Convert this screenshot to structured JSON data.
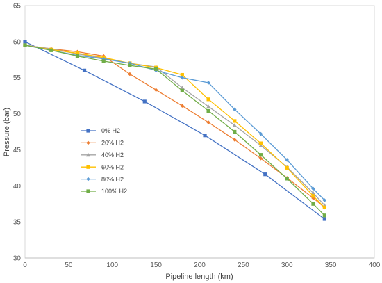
{
  "chart_data": {
    "type": "line",
    "xlabel": "Pipeline length (km)",
    "ylabel": "Pressure (bar)",
    "xlim": [
      0,
      400
    ],
    "ylim": [
      30,
      65
    ],
    "xticks": [
      0,
      50,
      100,
      150,
      200,
      250,
      300,
      350,
      400
    ],
    "yticks": [
      30,
      35,
      40,
      45,
      50,
      55,
      60,
      65
    ],
    "grid": false,
    "legend": "center-left",
    "series": [
      {
        "name": "0% H2",
        "color": "#4472C4",
        "marker": "square",
        "points": [
          [
            0,
            60.0
          ],
          [
            68,
            56.0
          ],
          [
            137,
            51.7
          ],
          [
            206,
            47.0
          ],
          [
            275,
            41.6
          ],
          [
            343,
            35.4
          ]
        ]
      },
      {
        "name": "20% H2",
        "color": "#ED7D31",
        "marker": "diamond",
        "points": [
          [
            0,
            59.5
          ],
          [
            30,
            59.0
          ],
          [
            60,
            58.6
          ],
          [
            90,
            58.0
          ],
          [
            120,
            55.5
          ],
          [
            150,
            53.3
          ],
          [
            180,
            51.1
          ],
          [
            210,
            48.8
          ],
          [
            240,
            46.4
          ],
          [
            270,
            43.8
          ],
          [
            300,
            41.1
          ],
          [
            330,
            38.3
          ],
          [
            343,
            37.0
          ]
        ]
      },
      {
        "name": "40% H2",
        "color": "#A5A5A5",
        "marker": "triangle",
        "points": [
          [
            0,
            59.5
          ],
          [
            30,
            59.0
          ],
          [
            60,
            58.3
          ],
          [
            90,
            57.7
          ],
          [
            120,
            57.0
          ],
          [
            150,
            56.5
          ],
          [
            180,
            53.6
          ],
          [
            210,
            51.0
          ],
          [
            240,
            48.4
          ],
          [
            270,
            45.6
          ],
          [
            300,
            42.6
          ],
          [
            330,
            39.0
          ],
          [
            343,
            37.3
          ]
        ]
      },
      {
        "name": "60% H2",
        "color": "#FFC000",
        "marker": "square",
        "points": [
          [
            0,
            59.5
          ],
          [
            30,
            58.9
          ],
          [
            60,
            58.4
          ],
          [
            90,
            57.8
          ],
          [
            120,
            57.0
          ],
          [
            150,
            56.4
          ],
          [
            180,
            55.4
          ],
          [
            210,
            52.0
          ],
          [
            240,
            49.0
          ],
          [
            270,
            45.9
          ],
          [
            300,
            42.5
          ],
          [
            330,
            38.6
          ],
          [
            343,
            37.0
          ]
        ]
      },
      {
        "name": "80% H2",
        "color": "#5B9BD5",
        "marker": "diamond",
        "points": [
          [
            0,
            59.5
          ],
          [
            30,
            58.8
          ],
          [
            60,
            58.1
          ],
          [
            90,
            57.6
          ],
          [
            120,
            57.0
          ],
          [
            150,
            56.0
          ],
          [
            180,
            55.0
          ],
          [
            210,
            54.3
          ],
          [
            240,
            50.6
          ],
          [
            270,
            47.2
          ],
          [
            300,
            43.6
          ],
          [
            330,
            39.6
          ],
          [
            343,
            38.0
          ]
        ]
      },
      {
        "name": "100% H2",
        "color": "#70AD47",
        "marker": "square",
        "points": [
          [
            0,
            59.5
          ],
          [
            30,
            58.8
          ],
          [
            60,
            58.0
          ],
          [
            90,
            57.3
          ],
          [
            120,
            56.7
          ],
          [
            150,
            56.2
          ],
          [
            180,
            53.2
          ],
          [
            210,
            50.4
          ],
          [
            240,
            47.5
          ],
          [
            270,
            44.3
          ],
          [
            300,
            41.0
          ],
          [
            330,
            37.5
          ],
          [
            343,
            35.9
          ]
        ]
      }
    ]
  }
}
